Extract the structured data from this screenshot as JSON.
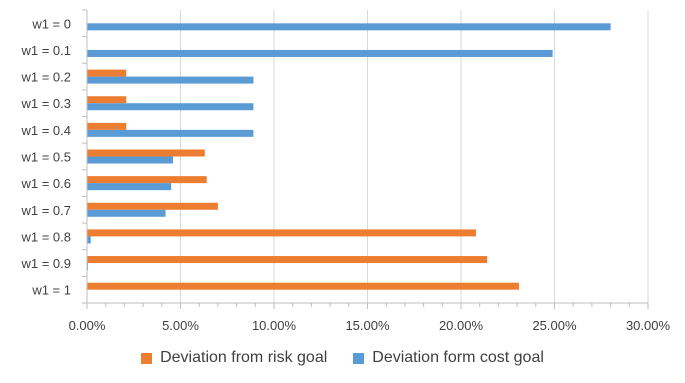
{
  "chart_data": {
    "type": "bar",
    "orientation": "horizontal",
    "categories": [
      "w1 = 0",
      "w1 = 0.1",
      "w1 = 0.2",
      "w1 = 0.3",
      "w1 = 0.4",
      "w1 = 0.5",
      "w1 = 0.6",
      "w1 = 0.7",
      "w1 = 0.8",
      "w1 = 0.9",
      "w1 = 1"
    ],
    "series": [
      {
        "name": "Deviation from risk goal",
        "color": "#ED7D31",
        "values": [
          0.0,
          0.0,
          2.1,
          2.1,
          2.1,
          6.3,
          6.4,
          7.0,
          20.8,
          21.4,
          23.1
        ]
      },
      {
        "name": "Deviation form cost goal",
        "color": "#5B9BD5",
        "values": [
          28.0,
          24.9,
          8.9,
          8.9,
          8.9,
          4.6,
          4.5,
          4.2,
          0.2,
          0.05,
          0.0
        ]
      }
    ],
    "xlim": [
      0,
      30
    ],
    "xticks": [
      "0.00%",
      "5.00%",
      "10.00%",
      "15.00%",
      "20.00%",
      "25.00%",
      "30.00%"
    ],
    "grid": true,
    "legend_position": "bottom",
    "title": "",
    "xlabel": "",
    "ylabel": ""
  }
}
